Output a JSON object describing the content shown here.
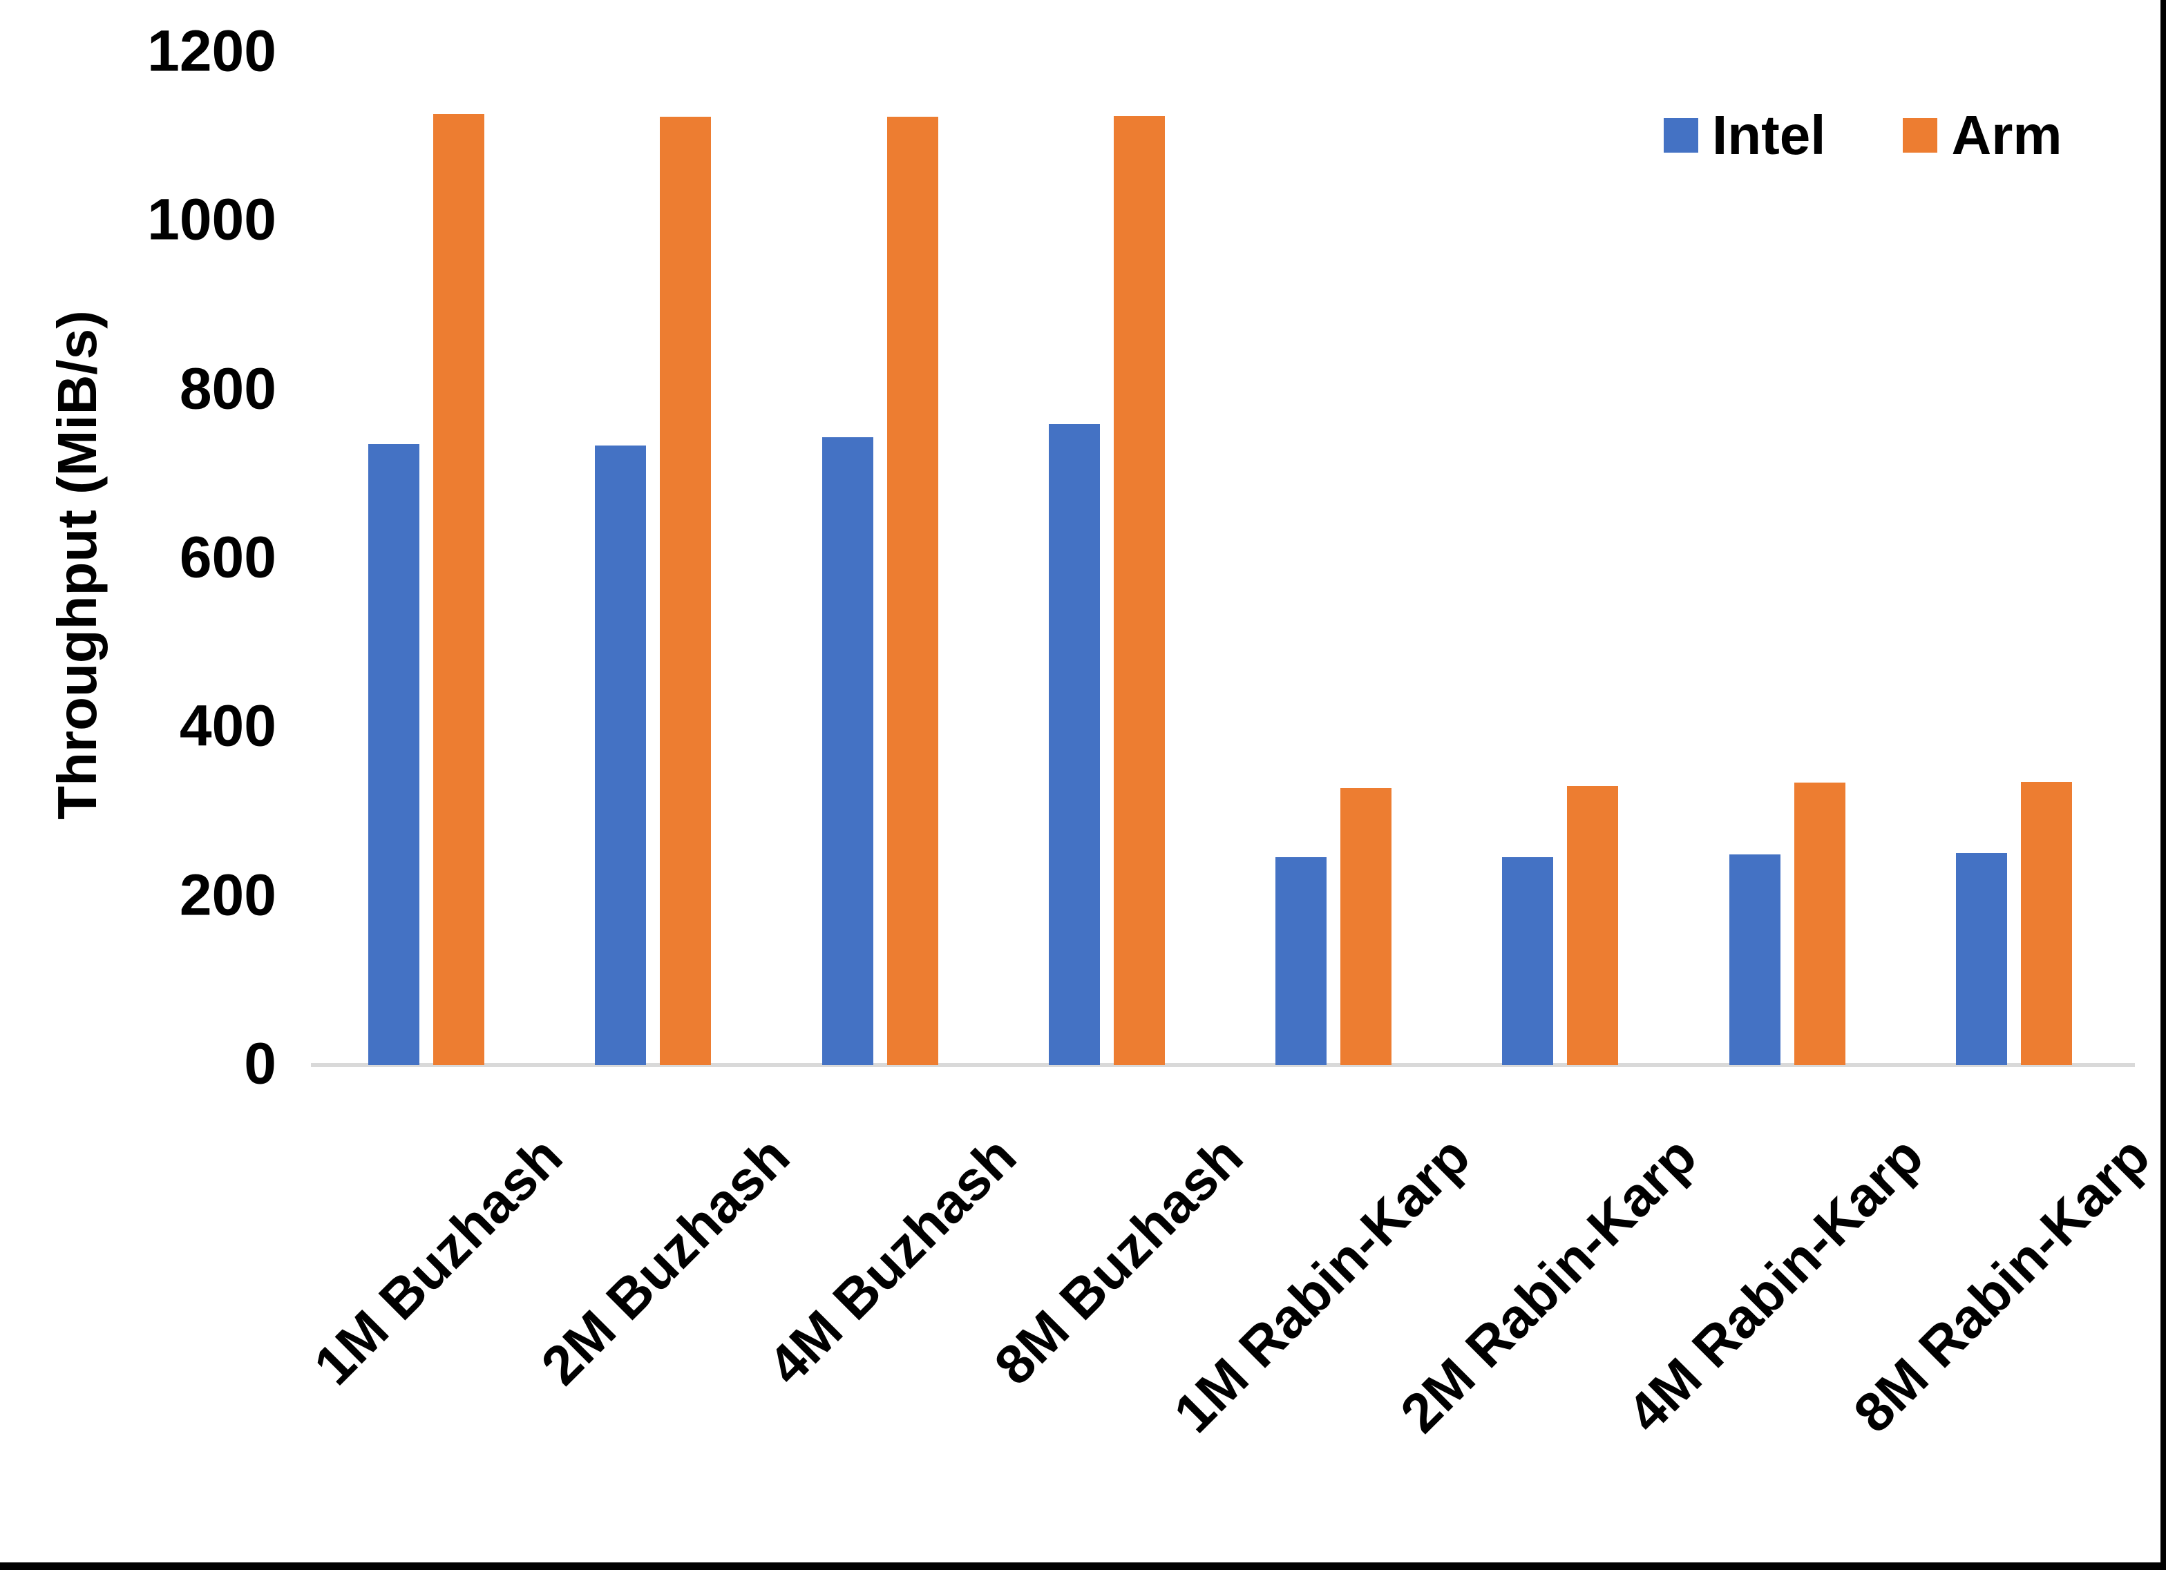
{
  "chart_data": {
    "type": "bar",
    "title": "",
    "xlabel": "",
    "ylabel": "Throughput (MiB/s)",
    "categories": [
      "1M Buzhash",
      "2M Buzhash",
      "4M Buzhash",
      "8M Buzhash",
      "1M Rabin-Karp",
      "2M Rabin-Karp",
      "4M Rabin-Karp",
      "8M Rabin-Karp"
    ],
    "series": [
      {
        "name": "Intel",
        "color": "#4472C4",
        "values": [
          736,
          734,
          744,
          760,
          246,
          246,
          250,
          251
        ]
      },
      {
        "name": "Arm",
        "color": "#ED7D31",
        "values": [
          1127,
          1124,
          1124,
          1125,
          328,
          331,
          335,
          336
        ]
      }
    ],
    "ylim": [
      0,
      1200
    ],
    "ytick_step": 200,
    "ytick_labels": [
      "0",
      "200",
      "400",
      "600",
      "800",
      "1000",
      "1200"
    ],
    "grid": "off",
    "legend_position": "top-right",
    "colors": {
      "axis_line": "#d9d9d9",
      "text": "#000000",
      "background": "#ffffff",
      "frame_border": "#000000"
    }
  }
}
